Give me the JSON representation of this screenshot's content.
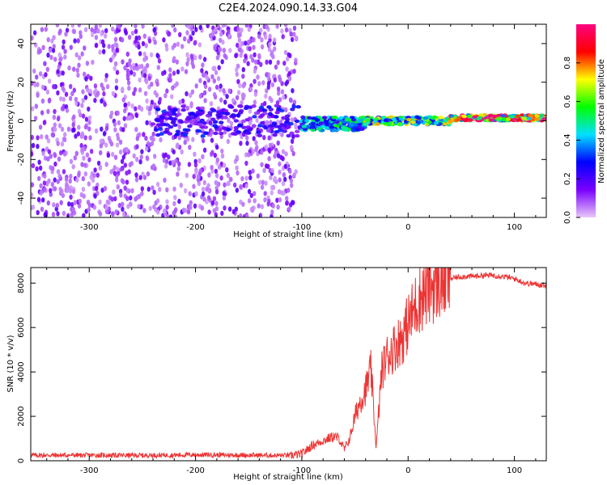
{
  "title": "C2E4.2024.090.14.33.G04",
  "chart_data": [
    {
      "type": "heatmap",
      "xlabel": "Height of straight line (km)",
      "ylabel": "Frequency (Hz)",
      "xlim": [
        -355,
        130
      ],
      "ylim": [
        -50,
        50
      ],
      "xticks": [
        -300,
        -200,
        -100,
        0,
        100
      ],
      "yticks": [
        -40,
        -20,
        0,
        20,
        40
      ],
      "colorbar": {
        "label": "Normalized spectral amplitude",
        "range": [
          0.0,
          1.0
        ],
        "ticks": [
          0.0,
          0.2,
          0.4,
          0.6,
          0.8
        ],
        "colors": [
          "#e8c8f8",
          "#7a00ff",
          "#0000ff",
          "#00e0ff",
          "#00ff00",
          "#ffff00",
          "#ff0000",
          "#ff0080"
        ]
      },
      "features": [
        {
          "x": [
            -355,
            -105
          ],
          "y": [
            -50,
            50
          ],
          "amplitude": 0.15
        },
        {
          "x": [
            -240,
            -100
          ],
          "y": [
            -8,
            8
          ],
          "amplitude": 0.25
        },
        {
          "x": [
            -100,
            -40
          ],
          "y": [
            -5,
            2
          ],
          "amplitude": 0.45
        },
        {
          "x": [
            -40,
            40
          ],
          "y": [
            -2,
            2
          ],
          "amplitude": 0.6
        },
        {
          "x": [
            40,
            130
          ],
          "y": [
            0,
            3
          ],
          "amplitude": 0.85
        }
      ]
    },
    {
      "type": "line",
      "xlabel": "Height of straight line (km)",
      "ylabel": "SNR (10 * v/v)",
      "xlim": [
        -355,
        130
      ],
      "ylim": [
        0,
        8700
      ],
      "xticks": [
        -300,
        -200,
        -100,
        0,
        100
      ],
      "yticks": [
        0,
        2000,
        4000,
        6000,
        8000
      ],
      "series": [
        {
          "color": "#ee3333",
          "x": [
            -355,
            -300,
            -250,
            -200,
            -150,
            -110,
            -100,
            -90,
            -80,
            -70,
            -65,
            -60,
            -55,
            -50,
            -45,
            -40,
            -35,
            -30,
            -25,
            -20,
            -15,
            -10,
            -5,
            0,
            10,
            20,
            30,
            40,
            50,
            60,
            70,
            80,
            90,
            100,
            110,
            120,
            130
          ],
          "y": [
            250,
            250,
            240,
            270,
            250,
            240,
            300,
            700,
            900,
            1100,
            1000,
            500,
            1000,
            2000,
            2700,
            3200,
            4100,
            600,
            4000,
            4700,
            5000,
            5300,
            5600,
            6200,
            7300,
            7800,
            8100,
            8200,
            8300,
            8300,
            8350,
            8350,
            8300,
            8200,
            8000,
            7950,
            7900
          ]
        }
      ]
    }
  ]
}
